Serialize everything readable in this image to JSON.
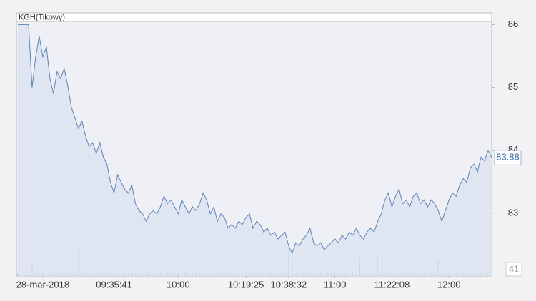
{
  "chart_data": {
    "type": "line",
    "title": "KGH(Tikowy)",
    "x": [
      0,
      1,
      2,
      3,
      4,
      5,
      6,
      7,
      8,
      9,
      10,
      11,
      12,
      13,
      14,
      15,
      16,
      17,
      18,
      19,
      20,
      21,
      22,
      23,
      24,
      25,
      26,
      27,
      28,
      29,
      30,
      31,
      32,
      33,
      34,
      35,
      36,
      37,
      38,
      39,
      40,
      41,
      42,
      43,
      44,
      45,
      46,
      47,
      48,
      49,
      50,
      51,
      52,
      53,
      54,
      55,
      56,
      57,
      58,
      59,
      60,
      61,
      62,
      63,
      64,
      65,
      66,
      67,
      68,
      69,
      70,
      71,
      72,
      73,
      74,
      75,
      76,
      77,
      78,
      79,
      80,
      81,
      82,
      83,
      84,
      85,
      86,
      87,
      88,
      89,
      90,
      91,
      92,
      93,
      94,
      95,
      96,
      97,
      98,
      99,
      100,
      101,
      102,
      103,
      104,
      105,
      106,
      107,
      108,
      109,
      110,
      111,
      112,
      113,
      114,
      115,
      116,
      117,
      118,
      119,
      120,
      121,
      122,
      123,
      124,
      125,
      126,
      127,
      128,
      129,
      130,
      131,
      132,
      133
    ],
    "series": [
      {
        "name": "KGH",
        "color": "#5d82b8",
        "values": [
          86,
          86,
          86,
          86,
          85.0,
          85.48,
          85.82,
          85.48,
          85.65,
          85.14,
          84.9,
          85.25,
          85.14,
          85.3,
          85.03,
          84.69,
          84.52,
          84.35,
          84.46,
          84.23,
          84.06,
          84.12,
          83.95,
          84.12,
          83.89,
          83.78,
          83.49,
          83.32,
          83.61,
          83.49,
          83.38,
          83.32,
          83.44,
          83.15,
          83.04,
          82.99,
          82.87,
          82.99,
          83.04,
          82.99,
          83.1,
          83.27,
          83.15,
          83.21,
          83.1,
          82.99,
          83.21,
          83.1,
          82.99,
          83.1,
          83.04,
          83.15,
          83.32,
          83.21,
          82.99,
          83.1,
          82.87,
          82.99,
          82.93,
          82.76,
          82.82,
          82.76,
          82.87,
          82.82,
          82.93,
          82.99,
          82.76,
          82.87,
          82.82,
          82.7,
          82.76,
          82.65,
          82.7,
          82.59,
          82.65,
          82.7,
          82.48,
          82.36,
          82.53,
          82.48,
          82.59,
          82.65,
          82.76,
          82.53,
          82.48,
          82.53,
          82.42,
          82.48,
          82.53,
          82.59,
          82.53,
          82.65,
          82.59,
          82.7,
          82.65,
          82.76,
          82.65,
          82.59,
          82.7,
          82.76,
          82.7,
          82.87,
          82.99,
          83.21,
          83.32,
          83.1,
          83.27,
          83.38,
          83.15,
          83.21,
          83.1,
          83.27,
          83.32,
          83.15,
          83.21,
          83.1,
          83.21,
          83.15,
          83.04,
          82.87,
          83.04,
          83.21,
          83.32,
          83.27,
          83.44,
          83.55,
          83.49,
          83.72,
          83.78,
          83.66,
          83.89,
          83.83,
          84.0,
          83.88
        ]
      }
    ],
    "volume": {
      "color": "#a3aab3",
      "values": [
        120,
        90,
        80,
        100,
        600,
        150,
        130,
        140,
        110,
        160,
        120,
        130,
        150,
        180,
        140,
        200,
        170,
        1300,
        160,
        150,
        140,
        130,
        170,
        150,
        120,
        160,
        140,
        130,
        150,
        170,
        160,
        140,
        180,
        130,
        150,
        120,
        160,
        170,
        140,
        150,
        130,
        160,
        150,
        140,
        170,
        120,
        150,
        160,
        140,
        130,
        170,
        150,
        140,
        160,
        130,
        150,
        180,
        140,
        160,
        150,
        140,
        130,
        150,
        170,
        160,
        140,
        150,
        130,
        160,
        170,
        150,
        140,
        160,
        130,
        170,
        150,
        1200,
        900,
        160,
        140,
        150,
        130,
        170,
        160,
        140,
        150,
        160,
        130,
        170,
        150,
        140,
        160,
        150,
        130,
        170,
        150,
        900,
        140,
        160,
        150,
        130,
        1000,
        160,
        150,
        140,
        170,
        130,
        150,
        160,
        140,
        150,
        170,
        130,
        160,
        140,
        150,
        160,
        170,
        700,
        140,
        150,
        130,
        160,
        140,
        170,
        150,
        140,
        160,
        130,
        150,
        160,
        140,
        150,
        41
      ]
    },
    "xlim": [
      0,
      133
    ],
    "xticks": [
      {
        "value": 7,
        "label": "28-mar-2018"
      },
      {
        "value": 27,
        "label": "09:35:41"
      },
      {
        "value": 45,
        "label": "10:00"
      },
      {
        "value": 64,
        "label": "10:19:25"
      },
      {
        "value": 76,
        "label": "10:38:32"
      },
      {
        "value": 89,
        "label": "11:00"
      },
      {
        "value": 105,
        "label": "11:22:08"
      },
      {
        "value": 121,
        "label": "12:00"
      }
    ],
    "ylim": [
      82,
      86.05
    ],
    "yticks": [
      83,
      84,
      85,
      86
    ],
    "y2lim": [
      0,
      2000
    ],
    "grid": false
  }
}
